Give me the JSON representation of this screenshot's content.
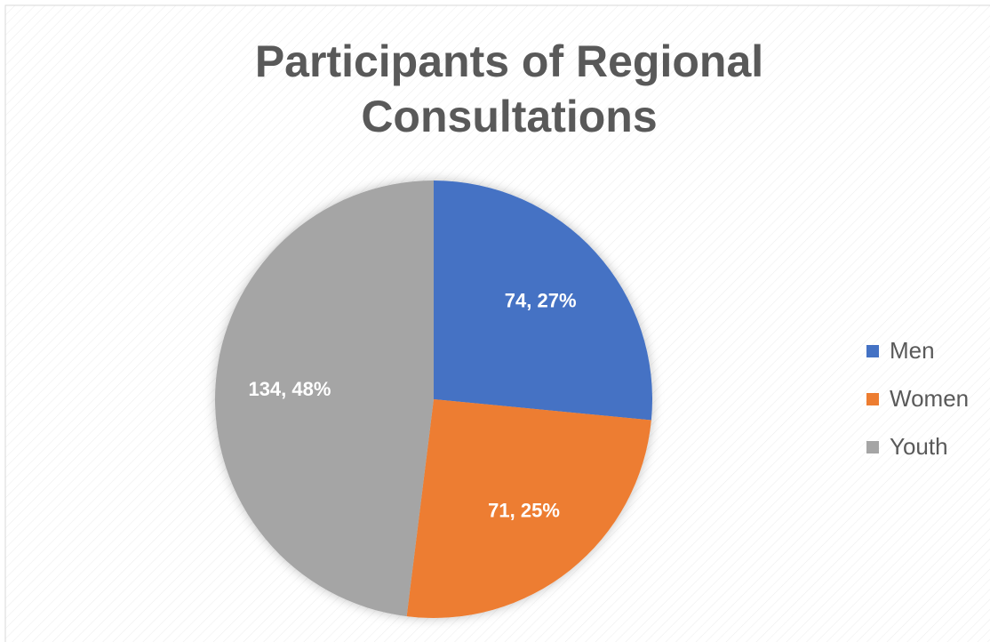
{
  "chart_data": {
    "type": "pie",
    "title": "Participants of Regional Consultations",
    "categories": [
      "Men",
      "Women",
      "Youth"
    ],
    "values": [
      74,
      71,
      134
    ],
    "value_labels": [
      "74, 27%",
      "71, 25%",
      "134, 48%"
    ],
    "colors": [
      "#4472c4",
      "#ed7d31",
      "#a5a5a5"
    ],
    "legend": "right"
  }
}
